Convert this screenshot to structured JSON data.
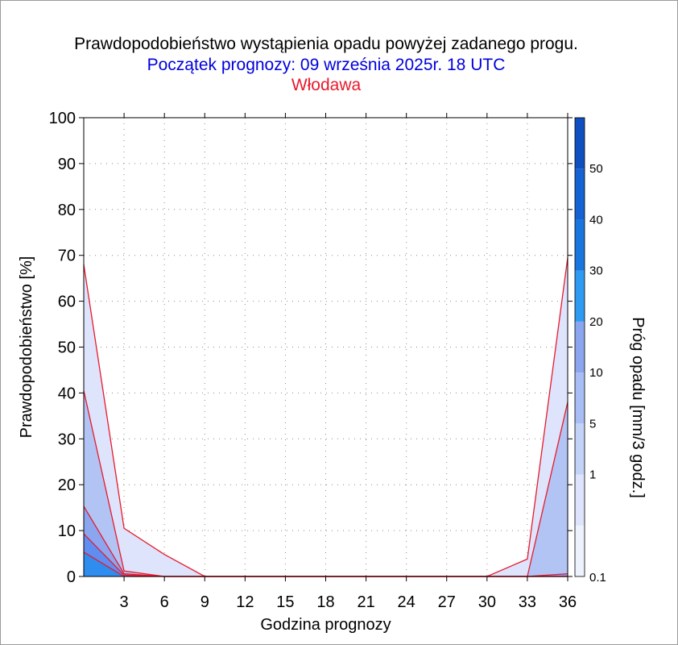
{
  "header": {
    "title": "Prawdopodobieństwo wystąpienia opadu powyżej zadanego progu.",
    "subtitle": "Początek prognozy: 09 września 2025r. 18 UTC",
    "location": "Włodawa",
    "title_color": "#000000",
    "subtitle_color": "#0000dd",
    "location_color": "#e8192c"
  },
  "chart_data": {
    "type": "area",
    "xlabel": "Godzina prognozy",
    "ylabel": "Prawdopodobieństwo [%]",
    "colorbar_label": "Próg opadu [mm/3 godz.]",
    "xlim": [
      0,
      36
    ],
    "ylim": [
      0,
      100
    ],
    "x_ticks": [
      3,
      6,
      9,
      12,
      15,
      18,
      21,
      24,
      27,
      30,
      33,
      36
    ],
    "y_ticks": [
      0,
      10,
      20,
      30,
      40,
      50,
      60,
      70,
      80,
      90,
      100
    ],
    "grid": true,
    "x": [
      0,
      3,
      6,
      9,
      12,
      15,
      18,
      21,
      24,
      27,
      30,
      33,
      36
    ],
    "series": [
      {
        "threshold": 0.1,
        "color": "#dde4fb",
        "values": [
          68,
          10.5,
          4.8,
          0,
          0,
          0,
          0,
          0,
          0,
          0,
          0,
          3.8,
          69.5
        ]
      },
      {
        "threshold": 1,
        "color": "#b2c4f3",
        "values": [
          40.5,
          1.2,
          0,
          0,
          0,
          0,
          0,
          0,
          0,
          0,
          0,
          0,
          38
        ]
      },
      {
        "threshold": 5,
        "color": "#8ba6ef",
        "values": [
          15.3,
          0.6,
          0,
          0,
          0,
          0,
          0,
          0,
          0,
          0,
          0,
          0,
          0.6
        ]
      },
      {
        "threshold": 10,
        "color": "#5f8df0",
        "values": [
          9.3,
          0.3,
          0,
          0,
          0,
          0,
          0,
          0,
          0,
          0,
          0,
          0,
          0
        ]
      },
      {
        "threshold": 20,
        "color": "#2f8df0",
        "values": [
          5.3,
          0,
          0,
          0,
          0,
          0,
          0,
          0,
          0,
          0,
          0,
          0,
          0
        ]
      }
    ],
    "line_color": "#e8192c",
    "colorbar": {
      "tick_labels": [
        "0.1",
        "1",
        "5",
        "10",
        "20",
        "30",
        "40",
        "50"
      ],
      "bins": [
        {
          "from": 0,
          "to": 0.1,
          "color": "#eef2fd"
        },
        {
          "from": 0.1,
          "to": 1,
          "color": "#dde4fb"
        },
        {
          "from": 1,
          "to": 5,
          "color": "#c3d2f7"
        },
        {
          "from": 5,
          "to": 10,
          "color": "#a8bdf4"
        },
        {
          "from": 10,
          "to": 20,
          "color": "#8ba6ef"
        },
        {
          "from": 20,
          "to": 30,
          "color": "#2f9af2"
        },
        {
          "from": 30,
          "to": 40,
          "color": "#1a76df"
        },
        {
          "from": 40,
          "to": 50,
          "color": "#1562d2"
        },
        {
          "from": 50,
          "to": 60,
          "color": "#0f4fc0"
        }
      ]
    }
  }
}
